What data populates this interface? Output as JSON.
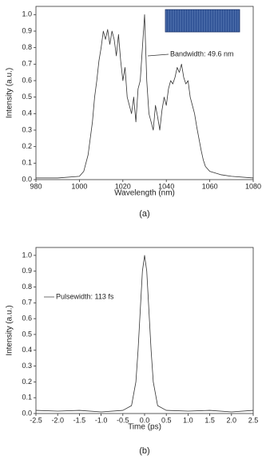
{
  "chart_data": [
    {
      "type": "line",
      "xlabel": "Wavelength (nm)",
      "ylabel": "Intensity (a.u.)",
      "caption": "(a)",
      "annotation": "Bandwidth: 49.6 nm",
      "color": "#333333",
      "x": [
        980,
        990,
        1000,
        1002,
        1004,
        1006,
        1007,
        1008,
        1009,
        1010,
        1011,
        1012,
        1013,
        1014,
        1015,
        1016,
        1017,
        1018,
        1019,
        1020,
        1021,
        1022,
        1023,
        1024,
        1025,
        1026,
        1027,
        1028,
        1029,
        1030,
        1031,
        1032,
        1033,
        1034,
        1035,
        1036,
        1037,
        1038,
        1039,
        1040,
        1041,
        1042,
        1043,
        1044,
        1045,
        1046,
        1047,
        1048,
        1049,
        1050,
        1051,
        1052,
        1053,
        1054,
        1055,
        1056,
        1057,
        1058,
        1060,
        1065,
        1070,
        1080
      ],
      "values": [
        0.01,
        0.01,
        0.02,
        0.05,
        0.15,
        0.35,
        0.5,
        0.6,
        0.72,
        0.8,
        0.9,
        0.85,
        0.91,
        0.82,
        0.9,
        0.85,
        0.75,
        0.88,
        0.72,
        0.6,
        0.68,
        0.5,
        0.45,
        0.4,
        0.5,
        0.35,
        0.55,
        0.6,
        0.8,
        1.0,
        0.6,
        0.4,
        0.35,
        0.3,
        0.45,
        0.38,
        0.3,
        0.42,
        0.5,
        0.45,
        0.55,
        0.6,
        0.58,
        0.62,
        0.68,
        0.65,
        0.7,
        0.62,
        0.58,
        0.6,
        0.5,
        0.45,
        0.4,
        0.32,
        0.25,
        0.18,
        0.12,
        0.08,
        0.05,
        0.03,
        0.02,
        0.01
      ],
      "xlim": [
        980,
        1080
      ],
      "xticks": [
        980,
        1000,
        1020,
        1040,
        1060,
        1080
      ],
      "ylim": [
        0,
        1.05
      ],
      "yticks": [
        {
          "value": 0,
          "label": "0.0"
        },
        0.1,
        0.2,
        0.3,
        0.4,
        0.5,
        0.6,
        0.7,
        0.8,
        0.9,
        {
          "value": 1,
          "label": "1.0"
        }
      ]
    },
    {
      "type": "line",
      "xlabel": "Time (ps)",
      "ylabel": "Intensity (a.u.)",
      "caption": "(b)",
      "annotation": "Pulsewidth: 113 fs",
      "color": "#333333",
      "x": [
        -2.5,
        -2.0,
        -1.5,
        -1.0,
        -0.5,
        -0.3,
        -0.2,
        -0.15,
        -0.1,
        -0.05,
        0,
        0.05,
        0.1,
        0.15,
        0.2,
        0.3,
        0.5,
        1.0,
        1.5,
        2.0,
        2.5
      ],
      "values": [
        0.02,
        0.015,
        0.02,
        0.01,
        0.02,
        0.05,
        0.2,
        0.4,
        0.65,
        0.9,
        1.0,
        0.9,
        0.65,
        0.4,
        0.2,
        0.05,
        0.02,
        0.015,
        0.02,
        0.01,
        0.02
      ],
      "xlim": [
        -2.5,
        2.5
      ],
      "xticks": [
        -2.5,
        {
          "value": -2,
          "label": "-2.0"
        },
        -1.5,
        {
          "value": -1,
          "label": "-1.0"
        },
        -0.5,
        {
          "value": 0,
          "label": "0.0"
        },
        0.5,
        {
          "value": 1,
          "label": "1.0"
        },
        1.5,
        {
          "value": 2,
          "label": "2.0"
        },
        2.5
      ],
      "ylim": [
        0,
        1.05
      ],
      "yticks": [
        {
          "value": 0,
          "label": "0.0"
        },
        0.1,
        0.2,
        0.3,
        0.4,
        0.5,
        0.6,
        0.7,
        0.8,
        0.9,
        {
          "value": 1,
          "label": "1.0"
        }
      ]
    }
  ]
}
